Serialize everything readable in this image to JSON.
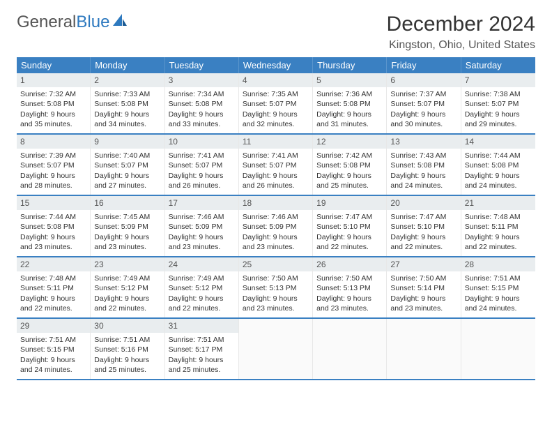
{
  "logo": {
    "part1": "General",
    "part2": "Blue"
  },
  "title": "December 2024",
  "location": "Kingston, Ohio, United States",
  "weekdays": [
    "Sunday",
    "Monday",
    "Tuesday",
    "Wednesday",
    "Thursday",
    "Friday",
    "Saturday"
  ],
  "colors": {
    "header_bar": "#3a80c2",
    "header_text": "#ffffff",
    "daynum_bg": "#e9edef",
    "border_blue": "#3a80c2",
    "body_text": "#333333",
    "logo_gray": "#555555",
    "logo_blue": "#2d79bf"
  },
  "layout": {
    "columns": 7,
    "cell_fontsize_pt": 8,
    "daynum_fontsize_pt": 9,
    "weekday_fontsize_pt": 10,
    "title_fontsize_pt": 22
  },
  "weeks": [
    [
      {
        "n": "1",
        "sunrise": "7:32 AM",
        "sunset": "5:08 PM",
        "daylight": "9 hours and 35 minutes."
      },
      {
        "n": "2",
        "sunrise": "7:33 AM",
        "sunset": "5:08 PM",
        "daylight": "9 hours and 34 minutes."
      },
      {
        "n": "3",
        "sunrise": "7:34 AM",
        "sunset": "5:08 PM",
        "daylight": "9 hours and 33 minutes."
      },
      {
        "n": "4",
        "sunrise": "7:35 AM",
        "sunset": "5:07 PM",
        "daylight": "9 hours and 32 minutes."
      },
      {
        "n": "5",
        "sunrise": "7:36 AM",
        "sunset": "5:08 PM",
        "daylight": "9 hours and 31 minutes."
      },
      {
        "n": "6",
        "sunrise": "7:37 AM",
        "sunset": "5:07 PM",
        "daylight": "9 hours and 30 minutes."
      },
      {
        "n": "7",
        "sunrise": "7:38 AM",
        "sunset": "5:07 PM",
        "daylight": "9 hours and 29 minutes."
      }
    ],
    [
      {
        "n": "8",
        "sunrise": "7:39 AM",
        "sunset": "5:07 PM",
        "daylight": "9 hours and 28 minutes."
      },
      {
        "n": "9",
        "sunrise": "7:40 AM",
        "sunset": "5:07 PM",
        "daylight": "9 hours and 27 minutes."
      },
      {
        "n": "10",
        "sunrise": "7:41 AM",
        "sunset": "5:07 PM",
        "daylight": "9 hours and 26 minutes."
      },
      {
        "n": "11",
        "sunrise": "7:41 AM",
        "sunset": "5:07 PM",
        "daylight": "9 hours and 26 minutes."
      },
      {
        "n": "12",
        "sunrise": "7:42 AM",
        "sunset": "5:08 PM",
        "daylight": "9 hours and 25 minutes."
      },
      {
        "n": "13",
        "sunrise": "7:43 AM",
        "sunset": "5:08 PM",
        "daylight": "9 hours and 24 minutes."
      },
      {
        "n": "14",
        "sunrise": "7:44 AM",
        "sunset": "5:08 PM",
        "daylight": "9 hours and 24 minutes."
      }
    ],
    [
      {
        "n": "15",
        "sunrise": "7:44 AM",
        "sunset": "5:08 PM",
        "daylight": "9 hours and 23 minutes."
      },
      {
        "n": "16",
        "sunrise": "7:45 AM",
        "sunset": "5:09 PM",
        "daylight": "9 hours and 23 minutes."
      },
      {
        "n": "17",
        "sunrise": "7:46 AM",
        "sunset": "5:09 PM",
        "daylight": "9 hours and 23 minutes."
      },
      {
        "n": "18",
        "sunrise": "7:46 AM",
        "sunset": "5:09 PM",
        "daylight": "9 hours and 23 minutes."
      },
      {
        "n": "19",
        "sunrise": "7:47 AM",
        "sunset": "5:10 PM",
        "daylight": "9 hours and 22 minutes."
      },
      {
        "n": "20",
        "sunrise": "7:47 AM",
        "sunset": "5:10 PM",
        "daylight": "9 hours and 22 minutes."
      },
      {
        "n": "21",
        "sunrise": "7:48 AM",
        "sunset": "5:11 PM",
        "daylight": "9 hours and 22 minutes."
      }
    ],
    [
      {
        "n": "22",
        "sunrise": "7:48 AM",
        "sunset": "5:11 PM",
        "daylight": "9 hours and 22 minutes."
      },
      {
        "n": "23",
        "sunrise": "7:49 AM",
        "sunset": "5:12 PM",
        "daylight": "9 hours and 22 minutes."
      },
      {
        "n": "24",
        "sunrise": "7:49 AM",
        "sunset": "5:12 PM",
        "daylight": "9 hours and 22 minutes."
      },
      {
        "n": "25",
        "sunrise": "7:50 AM",
        "sunset": "5:13 PM",
        "daylight": "9 hours and 23 minutes."
      },
      {
        "n": "26",
        "sunrise": "7:50 AM",
        "sunset": "5:13 PM",
        "daylight": "9 hours and 23 minutes."
      },
      {
        "n": "27",
        "sunrise": "7:50 AM",
        "sunset": "5:14 PM",
        "daylight": "9 hours and 23 minutes."
      },
      {
        "n": "28",
        "sunrise": "7:51 AM",
        "sunset": "5:15 PM",
        "daylight": "9 hours and 24 minutes."
      }
    ],
    [
      {
        "n": "29",
        "sunrise": "7:51 AM",
        "sunset": "5:15 PM",
        "daylight": "9 hours and 24 minutes."
      },
      {
        "n": "30",
        "sunrise": "7:51 AM",
        "sunset": "5:16 PM",
        "daylight": "9 hours and 25 minutes."
      },
      {
        "n": "31",
        "sunrise": "7:51 AM",
        "sunset": "5:17 PM",
        "daylight": "9 hours and 25 minutes."
      },
      null,
      null,
      null,
      null
    ]
  ],
  "labels": {
    "sunrise": "Sunrise:",
    "sunset": "Sunset:",
    "daylight": "Daylight:"
  }
}
